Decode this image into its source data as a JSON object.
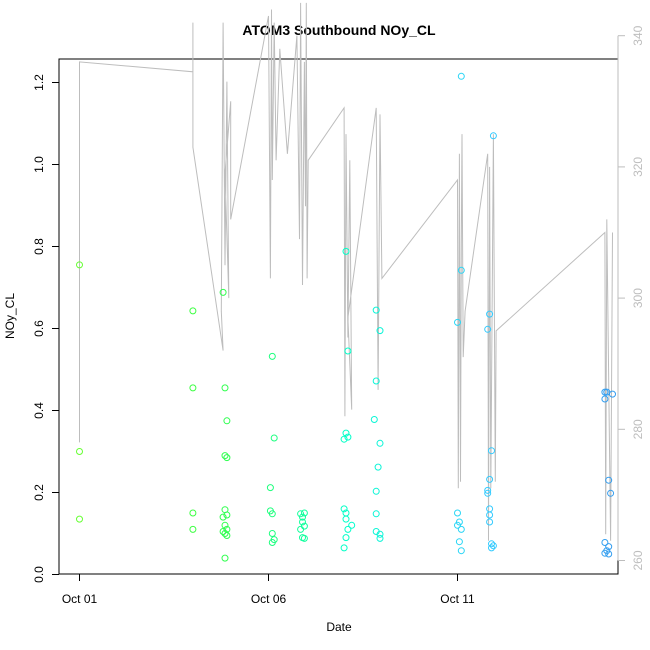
{
  "chart_data": {
    "type": "scatter",
    "title": "ATOM3 Southbound NOy_CL",
    "xlabel": "Date",
    "ylabel": "NOy_CL",
    "x_axis": {
      "range_days": [
        0,
        14.3
      ],
      "ticks": [
        {
          "day": 0,
          "label": "Oct 01"
        },
        {
          "day": 5,
          "label": "Oct 06"
        },
        {
          "day": 10,
          "label": "Oct 11"
        }
      ]
    },
    "y_axis": {
      "range": [
        0,
        1.25
      ],
      "ticks": [
        0.0,
        0.2,
        0.4,
        0.6,
        0.8,
        1.0,
        1.2
      ],
      "tick_labels": [
        "0.0",
        "0.2",
        "0.4",
        "0.6",
        "0.8",
        "1.0",
        "1.2"
      ]
    },
    "y2_axis": {
      "range": [
        258,
        350
      ],
      "ticks": [
        260,
        280,
        300,
        320,
        340
      ],
      "tick_labels": [
        "260",
        "280",
        "300",
        "320",
        "340"
      ],
      "color": "#bdbdbd"
    },
    "colors": {
      "line": "#bdbdbd",
      "axis": "#000000",
      "point_gradient": [
        "#66ff33",
        "#33ff44",
        "#00ffcc",
        "#33ccff",
        "#3399ee"
      ]
    },
    "points": [
      {
        "day": 0.0,
        "y": 0.755
      },
      {
        "day": 0.0,
        "y": 0.3
      },
      {
        "day": 0.0,
        "y": 0.135
      },
      {
        "day": 3.0,
        "y": 0.643
      },
      {
        "day": 3.0,
        "y": 0.455
      },
      {
        "day": 3.0,
        "y": 0.15
      },
      {
        "day": 3.0,
        "y": 0.11
      },
      {
        "day": 3.8,
        "y": 0.688
      },
      {
        "day": 3.85,
        "y": 0.455
      },
      {
        "day": 3.9,
        "y": 0.375
      },
      {
        "day": 3.85,
        "y": 0.29
      },
      {
        "day": 3.9,
        "y": 0.285
      },
      {
        "day": 3.85,
        "y": 0.158
      },
      {
        "day": 3.9,
        "y": 0.145
      },
      {
        "day": 3.8,
        "y": 0.14
      },
      {
        "day": 3.85,
        "y": 0.12
      },
      {
        "day": 3.9,
        "y": 0.11
      },
      {
        "day": 3.8,
        "y": 0.105
      },
      {
        "day": 3.85,
        "y": 0.1
      },
      {
        "day": 3.9,
        "y": 0.095
      },
      {
        "day": 3.85,
        "y": 0.04
      },
      {
        "day": 5.1,
        "y": 0.532
      },
      {
        "day": 5.15,
        "y": 0.333
      },
      {
        "day": 5.05,
        "y": 0.212
      },
      {
        "day": 5.05,
        "y": 0.155
      },
      {
        "day": 5.1,
        "y": 0.148
      },
      {
        "day": 5.1,
        "y": 0.1
      },
      {
        "day": 5.15,
        "y": 0.085
      },
      {
        "day": 5.1,
        "y": 0.078
      },
      {
        "day": 5.85,
        "y": 0.148
      },
      {
        "day": 5.9,
        "y": 0.14
      },
      {
        "day": 5.95,
        "y": 0.15
      },
      {
        "day": 5.9,
        "y": 0.128
      },
      {
        "day": 5.95,
        "y": 0.118
      },
      {
        "day": 5.85,
        "y": 0.11
      },
      {
        "day": 5.9,
        "y": 0.09
      },
      {
        "day": 5.95,
        "y": 0.088
      },
      {
        "day": 7.05,
        "y": 0.788
      },
      {
        "day": 7.1,
        "y": 0.545
      },
      {
        "day": 7.05,
        "y": 0.345
      },
      {
        "day": 7.0,
        "y": 0.33
      },
      {
        "day": 7.1,
        "y": 0.335
      },
      {
        "day": 7.0,
        "y": 0.16
      },
      {
        "day": 7.05,
        "y": 0.15
      },
      {
        "day": 7.05,
        "y": 0.135
      },
      {
        "day": 7.2,
        "y": 0.12
      },
      {
        "day": 7.1,
        "y": 0.11
      },
      {
        "day": 7.05,
        "y": 0.09
      },
      {
        "day": 7.0,
        "y": 0.065
      },
      {
        "day": 7.85,
        "y": 0.645
      },
      {
        "day": 7.95,
        "y": 0.595
      },
      {
        "day": 7.85,
        "y": 0.472
      },
      {
        "day": 7.8,
        "y": 0.378
      },
      {
        "day": 7.95,
        "y": 0.32
      },
      {
        "day": 7.9,
        "y": 0.262
      },
      {
        "day": 7.85,
        "y": 0.203
      },
      {
        "day": 7.85,
        "y": 0.148
      },
      {
        "day": 7.85,
        "y": 0.105
      },
      {
        "day": 7.95,
        "y": 0.098
      },
      {
        "day": 7.95,
        "y": 0.088
      },
      {
        "day": 10.0,
        "y": 0.615
      },
      {
        "day": 10.1,
        "y": 1.215
      },
      {
        "day": 10.1,
        "y": 0.742
      },
      {
        "day": 10.0,
        "y": 0.15
      },
      {
        "day": 10.05,
        "y": 0.128
      },
      {
        "day": 10.0,
        "y": 0.12
      },
      {
        "day": 10.1,
        "y": 0.11
      },
      {
        "day": 10.05,
        "y": 0.08
      },
      {
        "day": 10.1,
        "y": 0.058
      },
      {
        "day": 10.8,
        "y": 0.598
      },
      {
        "day": 10.85,
        "y": 0.635
      },
      {
        "day": 10.95,
        "y": 1.07
      },
      {
        "day": 10.9,
        "y": 0.302
      },
      {
        "day": 10.85,
        "y": 0.232
      },
      {
        "day": 10.8,
        "y": 0.205
      },
      {
        "day": 10.8,
        "y": 0.198
      },
      {
        "day": 10.85,
        "y": 0.16
      },
      {
        "day": 10.85,
        "y": 0.145
      },
      {
        "day": 10.85,
        "y": 0.128
      },
      {
        "day": 10.9,
        "y": 0.075
      },
      {
        "day": 10.95,
        "y": 0.07
      },
      {
        "day": 10.9,
        "y": 0.065
      },
      {
        "day": 13.9,
        "y": 0.445
      },
      {
        "day": 13.95,
        "y": 0.445
      },
      {
        "day": 14.1,
        "y": 0.44
      },
      {
        "day": 13.9,
        "y": 0.428
      },
      {
        "day": 14.0,
        "y": 0.23
      },
      {
        "day": 14.05,
        "y": 0.198
      },
      {
        "day": 13.9,
        "y": 0.078
      },
      {
        "day": 14.0,
        "y": 0.068
      },
      {
        "day": 13.95,
        "y": 0.058
      },
      {
        "day": 13.9,
        "y": 0.052
      },
      {
        "day": 14.0,
        "y": 0.05
      }
    ],
    "line_path": [
      [
        0.0,
        278
      ],
      [
        0.0,
        336
      ],
      [
        3.0,
        334.5
      ],
      [
        3.0,
        342
      ],
      [
        3.0,
        333
      ],
      [
        3.0,
        328
      ],
      [
        3.0,
        323
      ],
      [
        3.8,
        292
      ],
      [
        3.75,
        298
      ],
      [
        3.8,
        342
      ],
      [
        3.85,
        305
      ],
      [
        3.9,
        333
      ],
      [
        3.95,
        300
      ],
      [
        3.85,
        319
      ],
      [
        4.0,
        330
      ],
      [
        4.0,
        312
      ],
      [
        5.0,
        343
      ],
      [
        5.05,
        303
      ],
      [
        5.08,
        344
      ],
      [
        5.1,
        318
      ],
      [
        5.15,
        342
      ],
      [
        5.2,
        321
      ],
      [
        5.3,
        338
      ],
      [
        5.5,
        322
      ],
      [
        5.75,
        340
      ],
      [
        5.82,
        309
      ],
      [
        5.85,
        345
      ],
      [
        5.9,
        302
      ],
      [
        5.95,
        336
      ],
      [
        5.98,
        314
      ],
      [
        6.0,
        345
      ],
      [
        6.02,
        303
      ],
      [
        6.05,
        321
      ],
      [
        7.0,
        329
      ],
      [
        7.02,
        282
      ],
      [
        7.05,
        325
      ],
      [
        7.1,
        294
      ],
      [
        7.15,
        321
      ],
      [
        7.2,
        283
      ],
      [
        7.1,
        297
      ],
      [
        7.85,
        329
      ],
      [
        7.9,
        286
      ],
      [
        7.95,
        328
      ],
      [
        8.0,
        303
      ],
      [
        10.0,
        318
      ],
      [
        10.02,
        271
      ],
      [
        10.05,
        322
      ],
      [
        10.08,
        272
      ],
      [
        10.1,
        308
      ],
      [
        10.12,
        325
      ],
      [
        10.15,
        291
      ],
      [
        10.2,
        298
      ],
      [
        10.8,
        322
      ],
      [
        10.82,
        263
      ],
      [
        10.85,
        320
      ],
      [
        10.88,
        271
      ],
      [
        10.95,
        325
      ],
      [
        11.0,
        272
      ],
      [
        11.02,
        295
      ],
      [
        13.9,
        310
      ],
      [
        13.92,
        264
      ],
      [
        13.95,
        312
      ],
      [
        14.05,
        263
      ],
      [
        14.1,
        310
      ]
    ]
  }
}
